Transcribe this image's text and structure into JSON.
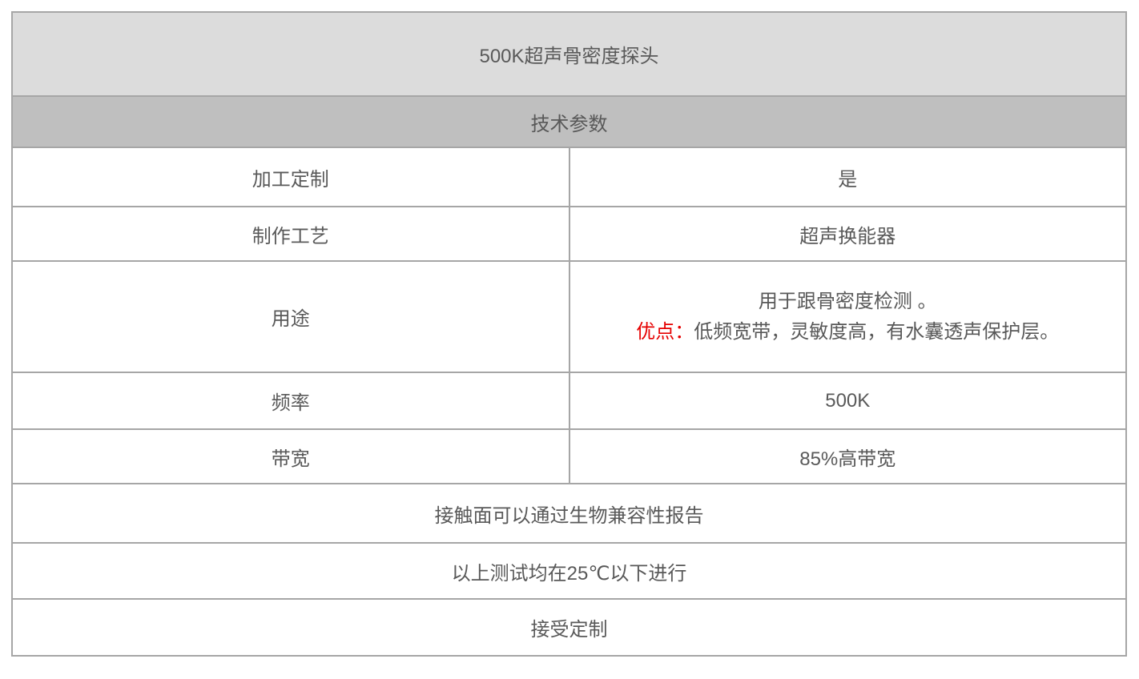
{
  "colors": {
    "title_row_bg": "#dcdcdc",
    "section_row_bg": "#bfbfbf",
    "border": "#a6a6a6",
    "text": "#595959",
    "highlight_red": "#e60000"
  },
  "table": {
    "title": "500K超声骨密度探头",
    "section_header": "技术参数",
    "params": [
      {
        "label": "加工定制",
        "value": "是"
      },
      {
        "label": "制作工艺",
        "value": "超声换能器"
      },
      {
        "label": "用途",
        "value_line1": "用于跟骨密度检测 。",
        "value_line2_highlight": "优点：",
        "value_line2_text": "低频宽带，灵敏度高，有水囊透声保护层。"
      },
      {
        "label": "频率",
        "value": "500K"
      },
      {
        "label": "带宽",
        "value": "85%高带宽"
      }
    ],
    "notes": [
      "接触面可以通过生物兼容性报告",
      "以上测试均在25℃以下进行",
      "接受定制"
    ]
  }
}
